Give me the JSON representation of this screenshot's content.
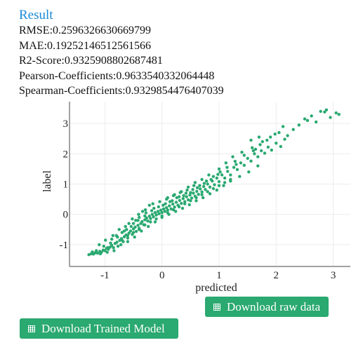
{
  "result": {
    "title": "Result",
    "metrics": [
      "RMSE:0.2596326630669799",
      "MAE:0.19252146512561566",
      "R2-Score:0.9325908802687481",
      "Pearson-Coefficients:0.9633540332064448",
      "Spearman-Coefficients:0.9329854476407039"
    ]
  },
  "buttons": {
    "download_raw": {
      "label": "Download raw data",
      "icon": "table-icon"
    },
    "download_model": {
      "label": "Download Trained Model",
      "icon": "table-icon"
    }
  },
  "colors": {
    "accent": "#1a8bd8",
    "marker": "#2aa970",
    "button": "#2aa970"
  },
  "chart_data": {
    "type": "scatter",
    "xlabel": "predicted",
    "ylabel": "label",
    "x_ticks": [
      "-1",
      "0",
      "1",
      "2",
      "3"
    ],
    "y_ticks": [
      "-1",
      "0",
      "1",
      "2",
      "3"
    ],
    "xlim": [
      -1.62,
      3.3
    ],
    "ylim": [
      -1.72,
      3.72
    ],
    "grid": true,
    "marker_color": "#2aa970",
    "series": [
      {
        "points": [
          [
            -1.28,
            -1.33
          ],
          [
            -1.24,
            -1.3
          ],
          [
            -1.2,
            -1.31
          ],
          [
            -1.17,
            -1.27
          ],
          [
            -1.13,
            -1.28
          ],
          [
            -1.09,
            -1.22
          ],
          [
            -1.06,
            -1.25
          ],
          [
            -1.03,
            -1.18
          ],
          [
            -1.0,
            -1.2
          ],
          [
            -0.97,
            -1.12
          ],
          [
            -0.94,
            -1.15
          ],
          [
            -0.91,
            -1.08
          ],
          [
            -0.88,
            -1.02
          ],
          [
            -0.85,
            -1.1
          ],
          [
            -0.82,
            -0.96
          ],
          [
            -0.79,
            -0.92
          ],
          [
            -0.77,
            -1.05
          ],
          [
            -0.74,
            -0.86
          ],
          [
            -0.71,
            -0.8
          ],
          [
            -0.68,
            -0.9
          ],
          [
            -0.66,
            -0.74
          ],
          [
            -0.63,
            -0.68
          ],
          [
            -0.6,
            -0.78
          ],
          [
            -0.58,
            -0.62
          ],
          [
            -0.55,
            -0.55
          ],
          [
            -0.52,
            -0.66
          ],
          [
            -0.5,
            -0.48
          ],
          [
            -0.47,
            -0.42
          ],
          [
            -0.45,
            -0.56
          ],
          [
            -0.42,
            -0.36
          ],
          [
            -0.4,
            -0.46
          ],
          [
            -0.37,
            -0.3
          ],
          [
            -0.35,
            -0.24
          ],
          [
            -0.32,
            -0.34
          ],
          [
            -0.3,
            -0.18
          ],
          [
            -0.27,
            -0.12
          ],
          [
            -0.25,
            -0.22
          ],
          [
            -0.22,
            -0.06
          ],
          [
            -0.2,
            -0.14
          ],
          [
            -0.17,
            0.0
          ],
          [
            -0.15,
            -0.08
          ],
          [
            -0.12,
            0.06
          ],
          [
            -0.1,
            -0.02
          ],
          [
            -0.07,
            0.1
          ],
          [
            -0.05,
            0.02
          ],
          [
            -0.02,
            0.14
          ],
          [
            0.0,
            0.06
          ],
          [
            0.03,
            0.18
          ],
          [
            0.05,
            0.1
          ],
          [
            0.08,
            0.22
          ],
          [
            0.1,
            0.14
          ],
          [
            0.13,
            0.28
          ],
          [
            0.16,
            0.18
          ],
          [
            0.19,
            0.34
          ],
          [
            0.22,
            0.24
          ],
          [
            0.25,
            0.4
          ],
          [
            0.28,
            0.3
          ],
          [
            0.31,
            0.46
          ],
          [
            0.34,
            0.36
          ],
          [
            0.37,
            0.52
          ],
          [
            0.4,
            0.42
          ],
          [
            0.43,
            0.58
          ],
          [
            0.46,
            0.48
          ],
          [
            0.49,
            0.64
          ],
          [
            0.52,
            0.54
          ],
          [
            0.55,
            0.7
          ],
          [
            0.58,
            0.6
          ],
          [
            0.61,
            0.76
          ],
          [
            0.64,
            0.66
          ],
          [
            0.67,
            0.84
          ],
          [
            0.7,
            0.74
          ],
          [
            0.73,
            0.92
          ],
          [
            0.76,
            0.82
          ],
          [
            0.8,
            1.0
          ],
          [
            0.84,
            0.9
          ],
          [
            0.88,
            1.1
          ],
          [
            0.92,
            0.98
          ],
          [
            0.96,
            1.2
          ],
          [
            1.0,
            1.08
          ],
          [
            1.05,
            1.3
          ],
          [
            1.1,
            1.2
          ],
          [
            1.15,
            1.42
          ],
          [
            1.2,
            1.3
          ],
          [
            1.26,
            1.55
          ],
          [
            1.32,
            1.48
          ],
          [
            1.38,
            1.7
          ],
          [
            1.44,
            1.62
          ],
          [
            1.5,
            1.85
          ],
          [
            1.56,
            1.76
          ],
          [
            1.62,
            2.0
          ],
          [
            1.68,
            1.9
          ],
          [
            1.74,
            2.1
          ],
          [
            1.8,
            2.02
          ],
          [
            1.86,
            2.22
          ],
          [
            1.92,
            2.12
          ],
          [
            2.0,
            2.35
          ],
          [
            2.08,
            2.24
          ],
          [
            2.15,
            2.48
          ],
          [
            -1.22,
            -1.24
          ],
          [
            -1.15,
            -1.2
          ],
          [
            -1.08,
            -1.3
          ],
          [
            -1.02,
            -1.05
          ],
          [
            -0.96,
            -1.25
          ],
          [
            -0.9,
            -0.95
          ],
          [
            -0.84,
            -1.2
          ],
          [
            -0.78,
            -0.75
          ],
          [
            -0.72,
            -1.0
          ],
          [
            -0.66,
            -0.55
          ],
          [
            -0.6,
            -0.9
          ],
          [
            -0.54,
            -0.4
          ],
          [
            -0.48,
            -0.75
          ],
          [
            -0.42,
            -0.2
          ],
          [
            -0.36,
            -0.55
          ],
          [
            -0.3,
            -0.05
          ],
          [
            -0.24,
            -0.4
          ],
          [
            -0.18,
            0.12
          ],
          [
            -0.12,
            -0.25
          ],
          [
            -0.06,
            0.25
          ],
          [
            0.0,
            -0.1
          ],
          [
            0.06,
            0.35
          ],
          [
            0.12,
            0.0
          ],
          [
            0.18,
            0.45
          ],
          [
            0.24,
            0.1
          ],
          [
            0.3,
            0.58
          ],
          [
            0.36,
            0.2
          ],
          [
            0.42,
            0.7
          ],
          [
            0.48,
            0.32
          ],
          [
            0.54,
            0.82
          ],
          [
            0.6,
            0.45
          ],
          [
            0.66,
            0.95
          ],
          [
            0.72,
            0.55
          ],
          [
            0.78,
            1.1
          ],
          [
            0.84,
            0.68
          ],
          [
            0.9,
            1.25
          ],
          [
            0.96,
            0.8
          ],
          [
            1.02,
            1.4
          ],
          [
            1.08,
            0.95
          ],
          [
            1.14,
            1.55
          ],
          [
            1.2,
            1.1
          ],
          [
            1.28,
            1.75
          ],
          [
            1.36,
            1.25
          ],
          [
            1.44,
            1.95
          ],
          [
            1.52,
            1.4
          ],
          [
            1.6,
            2.1
          ],
          [
            1.68,
            1.6
          ],
          [
            -0.95,
            -1.1
          ],
          [
            -0.88,
            -0.82
          ],
          [
            -0.8,
            -0.7
          ],
          [
            -0.7,
            -0.6
          ],
          [
            -0.62,
            -0.5
          ],
          [
            -0.5,
            -0.3
          ],
          [
            -0.4,
            -0.1
          ],
          [
            -0.28,
            0.05
          ],
          [
            -0.14,
            0.2
          ],
          [
            0.02,
            0.3
          ],
          [
            0.14,
            0.42
          ],
          [
            0.26,
            0.55
          ],
          [
            0.38,
            0.62
          ],
          [
            0.5,
            0.72
          ],
          [
            0.62,
            0.88
          ],
          [
            0.74,
            1.02
          ],
          [
            0.86,
            1.15
          ],
          [
            0.98,
            1.32
          ],
          [
            -0.58,
            -0.3
          ],
          [
            -0.46,
            -0.2
          ],
          [
            -0.34,
            0.1
          ],
          [
            -0.22,
            0.3
          ],
          [
            0.1,
            0.55
          ],
          [
            0.22,
            0.65
          ],
          [
            0.34,
            0.75
          ],
          [
            0.46,
            0.9
          ],
          [
            0.58,
            1.05
          ],
          [
            0.7,
            1.15
          ],
          [
            0.82,
            1.3
          ],
          [
            1.12,
            1.7
          ],
          [
            1.24,
            1.9
          ],
          [
            1.4,
            2.05
          ],
          [
            1.58,
            2.2
          ],
          [
            1.72,
            2.3
          ],
          [
            1.9,
            2.55
          ],
          [
            1.64,
            2.15
          ],
          [
            1.3,
            1.65
          ],
          [
            1.0,
            1.5
          ],
          [
            -1.1,
            -1.0
          ],
          [
            -0.99,
            -0.85
          ],
          [
            -0.86,
            -0.7
          ],
          [
            -0.75,
            -0.5
          ],
          [
            -0.64,
            -0.4
          ],
          [
            -0.52,
            -0.15
          ],
          [
            -0.41,
            0.0
          ],
          [
            -0.29,
            0.15
          ],
          [
            -0.16,
            0.35
          ],
          [
            -0.04,
            0.42
          ],
          [
            0.08,
            0.5
          ],
          [
            0.2,
            0.62
          ],
          [
            0.32,
            0.72
          ],
          [
            0.44,
            0.8
          ],
          [
            0.56,
            0.95
          ],
          [
            -0.7,
            -0.85
          ],
          [
            -0.6,
            -0.7
          ],
          [
            -0.5,
            -0.6
          ],
          [
            -0.4,
            -0.5
          ],
          [
            -0.3,
            -0.35
          ],
          [
            -0.2,
            -0.25
          ],
          [
            -0.1,
            -0.15
          ],
          [
            0.0,
            -0.05
          ],
          [
            0.1,
            0.05
          ],
          [
            0.2,
            0.15
          ],
          [
            0.3,
            0.25
          ],
          [
            0.4,
            0.35
          ],
          [
            0.5,
            0.45
          ],
          [
            0.6,
            0.55
          ],
          [
            0.7,
            0.65
          ],
          [
            0.8,
            0.75
          ],
          [
            0.9,
            0.85
          ],
          [
            1.0,
            0.95
          ],
          [
            1.1,
            1.05
          ],
          [
            1.2,
            1.15
          ],
          [
            2.2,
            2.6
          ],
          [
            2.05,
            2.7
          ],
          [
            2.3,
            2.8
          ],
          [
            2.55,
            3.1
          ],
          [
            2.62,
            3.25
          ],
          [
            2.7,
            3.05
          ],
          [
            2.78,
            3.4
          ],
          [
            2.85,
            3.38
          ],
          [
            2.95,
            3.2
          ],
          [
            3.05,
            3.35
          ],
          [
            3.1,
            3.3
          ],
          [
            2.88,
            3.45
          ],
          [
            2.5,
            3.15
          ],
          [
            2.4,
            2.95
          ],
          [
            2.12,
            2.9
          ],
          [
            1.98,
            2.65
          ],
          [
            1.84,
            2.45
          ],
          [
            1.76,
            2.4
          ],
          [
            1.7,
            2.55
          ],
          [
            1.56,
            2.45
          ]
        ]
      }
    ]
  }
}
